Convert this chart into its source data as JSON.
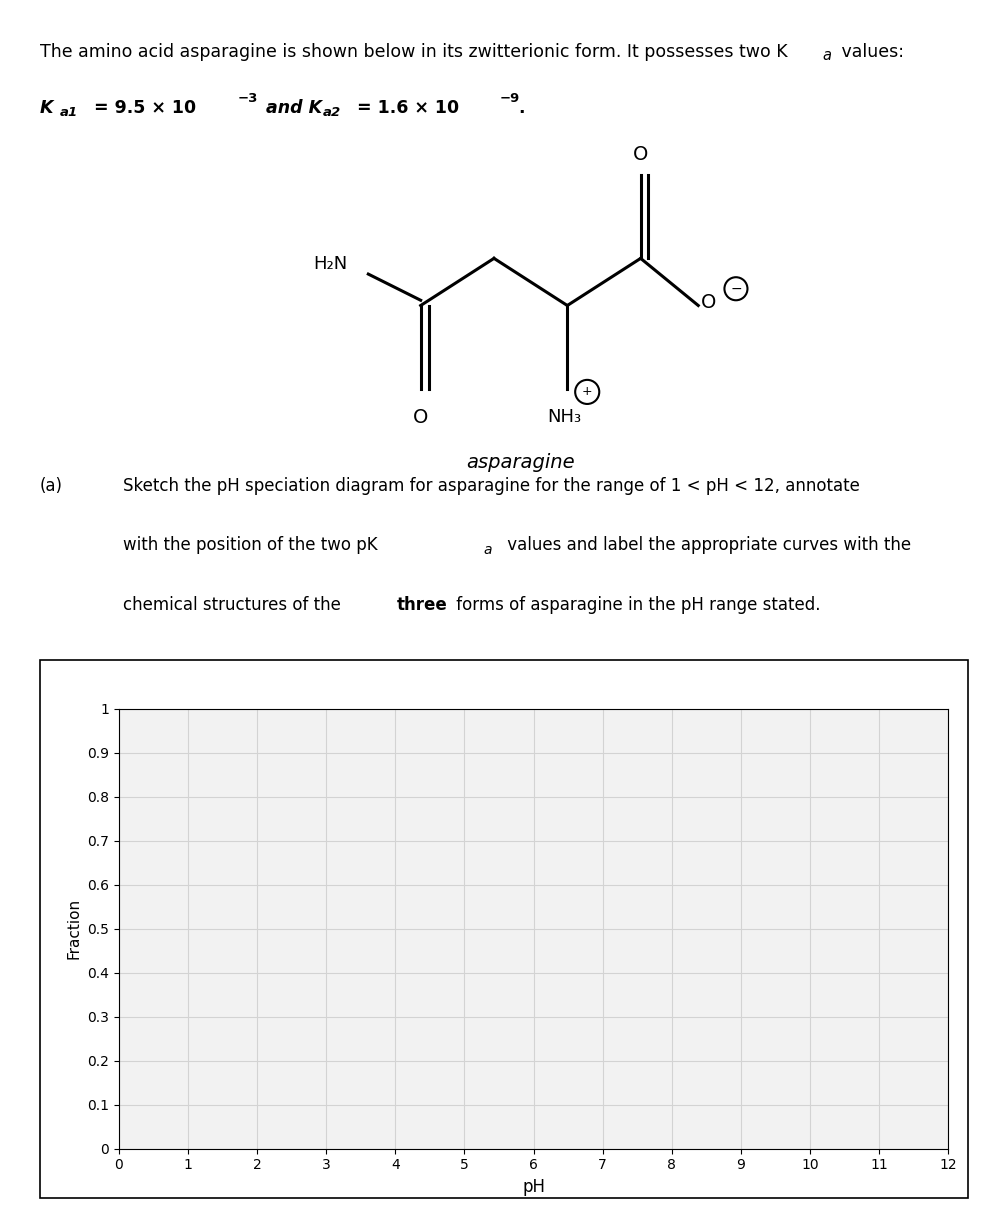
{
  "xlabel": "pH",
  "ylabel": "Fraction",
  "xlim": [
    0,
    12
  ],
  "ylim": [
    0,
    1
  ],
  "xticks": [
    0,
    1,
    2,
    3,
    4,
    5,
    6,
    7,
    8,
    9,
    10,
    11,
    12
  ],
  "yticks": [
    0,
    0.1,
    0.2,
    0.3,
    0.4,
    0.5,
    0.6,
    0.7,
    0.8,
    0.9,
    1
  ],
  "background_color": "#ffffff",
  "grid_color": "#d3d3d3",
  "plot_bg": "#f2f2f2",
  "figsize": [
    9.88,
    12.22
  ],
  "dpi": 100
}
